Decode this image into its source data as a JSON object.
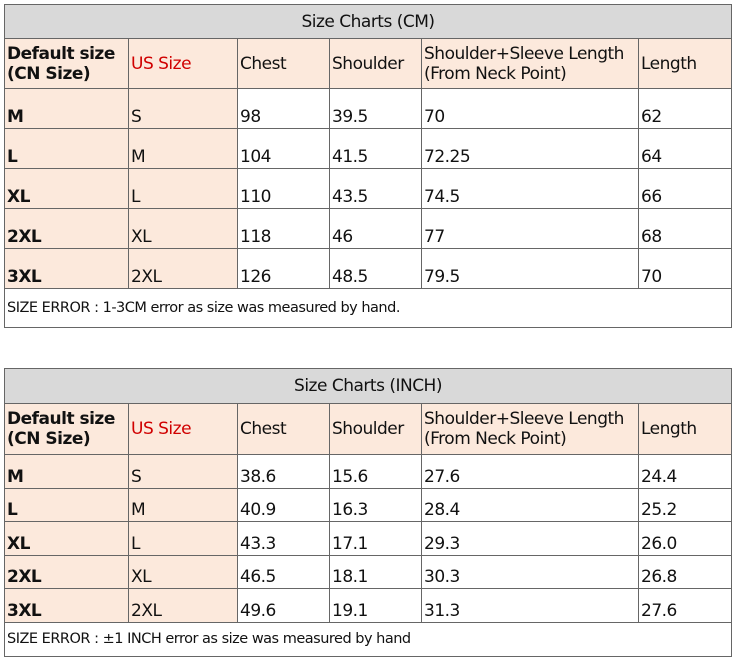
{
  "headers": {
    "default": "Default size\n(CN Size)",
    "default_l1": "Default size",
    "default_l2": "(CN Size)",
    "us": "US Size",
    "chest": "Chest",
    "shoulder": "Shoulder",
    "sleeve_l1": "Shoulder+Sleeve Length",
    "sleeve_l2": "(From Neck Point)",
    "length": "Length"
  },
  "cm": {
    "title": "Size Charts (CM)",
    "rows": [
      [
        "M",
        "S",
        "98",
        "39.5",
        "70",
        "62"
      ],
      [
        "L",
        "M",
        "104",
        "41.5",
        "72.25",
        "64"
      ],
      [
        "XL",
        "L",
        "110",
        "43.5",
        "74.5",
        "66"
      ],
      [
        "2XL",
        "XL",
        "118",
        "46",
        "77",
        "68"
      ],
      [
        "3XL",
        "2XL",
        "126",
        "48.5",
        "79.5",
        "70"
      ]
    ],
    "note": "SIZE ERROR : 1-3CM error as size was measured by hand."
  },
  "inch": {
    "title": "Size Charts (INCH)",
    "rows": [
      [
        "M",
        "S",
        "38.6",
        "15.6",
        "27.6",
        "24.4"
      ],
      [
        "L",
        "M",
        "40.9",
        "16.3",
        "28.4",
        "25.2"
      ],
      [
        "XL",
        "L",
        "43.3",
        "17.1",
        "29.3",
        "26.0"
      ],
      [
        "2XL",
        "XL",
        "46.5",
        "18.1",
        "30.3",
        "26.8"
      ],
      [
        "3XL",
        "2XL",
        "49.6",
        "19.1",
        "31.3",
        "27.6"
      ]
    ],
    "note": "SIZE ERROR : ±1 INCH error as size was measured by hand"
  },
  "colors": {
    "header_bg": "#fce9dc",
    "title_bg": "#d9d9d9",
    "us_size_text": "#d00000"
  }
}
